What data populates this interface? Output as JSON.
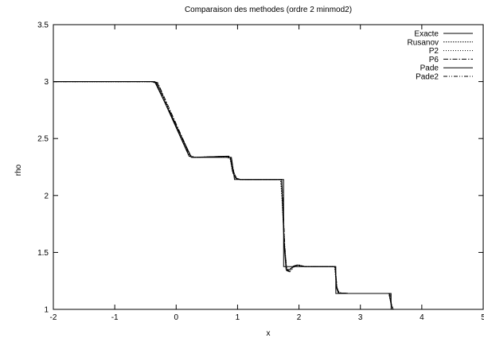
{
  "chart_data": {
    "type": "line",
    "title": "Comparaison des methodes (ordre 2 minmod2)",
    "xlabel": "x",
    "ylabel": "rho",
    "xlim": [
      -2,
      5
    ],
    "ylim": [
      1,
      3.5
    ],
    "x_ticks": [
      "-2",
      "-1",
      "0",
      "1",
      "2",
      "3",
      "4",
      "5"
    ],
    "y_ticks": [
      "1",
      "1.5",
      "2",
      "2.5",
      "3",
      "3.5"
    ],
    "grid": false,
    "legend_position": "top-right",
    "series": [
      {
        "name": "Exacte",
        "dash": "solid",
        "x": [
          -2,
          -0.35,
          0.25,
          0.9,
          0.95,
          1.0,
          1.75,
          1.75,
          2.6,
          2.6,
          3.5,
          3.5,
          5
        ],
        "y": [
          3.0,
          3.0,
          2.335,
          2.335,
          2.14,
          2.14,
          2.14,
          1.375,
          1.375,
          1.14,
          1.14,
          1.0,
          1.0
        ]
      },
      {
        "name": "Rusanov",
        "dash": "dotted",
        "x": [
          -2,
          -0.4,
          -0.3,
          0.2,
          0.3,
          0.82,
          0.88,
          0.92,
          0.98,
          1.05,
          1.7,
          1.72,
          1.76,
          1.79,
          1.82,
          1.9,
          1.96,
          2.1,
          2.58,
          2.61,
          2.64,
          2.8,
          3.46,
          3.5,
          3.54,
          5
        ],
        "y": [
          3.0,
          3.0,
          2.98,
          2.36,
          2.335,
          2.34,
          2.32,
          2.2,
          2.15,
          2.14,
          2.14,
          2.0,
          1.6,
          1.38,
          1.34,
          1.37,
          1.385,
          1.375,
          1.375,
          1.2,
          1.145,
          1.14,
          1.14,
          1.05,
          1.0,
          1.0
        ]
      },
      {
        "name": "P2",
        "dash": "dotted-fine",
        "x": [
          -2,
          -0.38,
          -0.32,
          0.22,
          0.3,
          0.84,
          0.89,
          0.93,
          0.98,
          1.05,
          1.71,
          1.73,
          1.76,
          1.8,
          1.84,
          1.92,
          1.98,
          2.1,
          2.59,
          2.61,
          2.65,
          2.8,
          3.47,
          3.5,
          3.53,
          5
        ],
        "y": [
          3.0,
          3.0,
          2.99,
          2.35,
          2.335,
          2.345,
          2.33,
          2.22,
          2.15,
          2.14,
          2.14,
          1.95,
          1.6,
          1.36,
          1.35,
          1.38,
          1.39,
          1.375,
          1.375,
          1.2,
          1.145,
          1.14,
          1.14,
          1.04,
          1.0,
          1.0
        ]
      },
      {
        "name": "P6",
        "dash": "dash-dot",
        "x": [
          -2,
          -0.36,
          -0.3,
          0.24,
          0.3,
          0.86,
          0.9,
          0.94,
          0.99,
          1.05,
          1.72,
          1.74,
          1.77,
          1.8,
          1.85,
          1.93,
          2.0,
          2.1,
          2.59,
          2.62,
          2.66,
          2.8,
          3.48,
          3.51,
          3.53,
          5
        ],
        "y": [
          3.0,
          3.0,
          2.99,
          2.34,
          2.335,
          2.345,
          2.32,
          2.2,
          2.145,
          2.14,
          2.14,
          1.9,
          1.5,
          1.34,
          1.33,
          1.38,
          1.39,
          1.375,
          1.375,
          1.18,
          1.145,
          1.14,
          1.14,
          1.03,
          1.0,
          1.0
        ]
      },
      {
        "name": "Pade",
        "dash": "solid",
        "x": [
          -2,
          -0.4,
          -0.33,
          0.21,
          0.28,
          0.83,
          0.88,
          0.92,
          0.97,
          1.04,
          1.72,
          1.73,
          1.76,
          1.79,
          1.83,
          1.91,
          1.97,
          2.1,
          2.59,
          2.61,
          2.64,
          2.8,
          3.47,
          3.5,
          3.53,
          5
        ],
        "y": [
          3.0,
          3.0,
          2.99,
          2.345,
          2.335,
          2.345,
          2.33,
          2.21,
          2.15,
          2.14,
          2.14,
          1.95,
          1.55,
          1.35,
          1.34,
          1.38,
          1.39,
          1.375,
          1.375,
          1.19,
          1.145,
          1.14,
          1.14,
          1.04,
          1.0,
          1.0
        ]
      },
      {
        "name": "Pade2",
        "dash": "dash-dot-dot",
        "x": [
          -2,
          -0.37,
          -0.31,
          0.23,
          0.3,
          0.85,
          0.9,
          0.94,
          0.99,
          1.05,
          1.72,
          1.74,
          1.77,
          1.8,
          1.84,
          1.92,
          1.99,
          2.1,
          2.59,
          2.62,
          2.65,
          2.8,
          3.48,
          3.5,
          3.53,
          5
        ],
        "y": [
          3.0,
          3.0,
          2.99,
          2.34,
          2.335,
          2.345,
          2.325,
          2.2,
          2.15,
          2.14,
          2.14,
          1.92,
          1.55,
          1.34,
          1.335,
          1.38,
          1.39,
          1.375,
          1.375,
          1.19,
          1.145,
          1.14,
          1.14,
          1.035,
          1.0,
          1.0
        ]
      }
    ]
  }
}
